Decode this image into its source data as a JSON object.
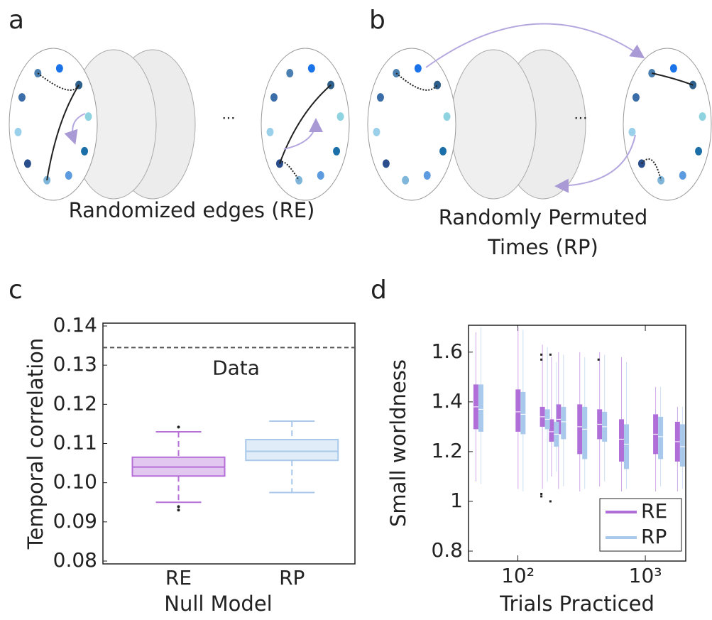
{
  "panels": {
    "a": {
      "label": "a",
      "caption": "Randomized edges (RE)",
      "ellipsis": "..."
    },
    "b": {
      "label": "b",
      "caption_lines": [
        "Randomly Permuted",
        "Times (RP)"
      ],
      "ellipsis": "..."
    }
  },
  "chart_data": [
    {
      "type": "box",
      "panel_label": "c",
      "ylabel": "Temporal correlation",
      "xlabel": "Null Model",
      "categories": [
        "RE",
        "RP"
      ],
      "boxes": [
        {
          "low": 0.095,
          "q1": 0.1017,
          "median": 0.104,
          "q3": 0.1065,
          "high": 0.113,
          "outliers": [
            0.1142,
            0.0939,
            0.093
          ],
          "color": "#b56fd6",
          "fill": "#e2c8f0"
        },
        {
          "low": 0.0975,
          "q1": 0.1057,
          "median": 0.108,
          "q3": 0.111,
          "high": 0.1157,
          "outliers": [],
          "color": "#a9c8ea",
          "fill": "#e0ecf8"
        }
      ],
      "ylim": [
        0.08,
        0.14
      ],
      "yticks": [
        0.08,
        0.09,
        {
          "value": 0.1,
          "label": "0.10"
        },
        0.11,
        0.12,
        0.13,
        0.14
      ],
      "reference_line": {
        "value": 0.1345,
        "label": "Data",
        "color": "#555555"
      }
    },
    {
      "type": "box",
      "panel_label": "d",
      "ylabel": "Small worldness",
      "xlabel": "Trials Practiced",
      "x": [
        49,
        105,
        163,
        192,
        218,
        320,
        458,
        680,
        1260,
        1870
      ],
      "xlim": [
        41,
        2075
      ],
      "log_x": true,
      "xticks": [
        {
          "value": 100,
          "label": "10²"
        },
        {
          "value": 1000,
          "label": "10³"
        }
      ],
      "ylim": [
        0.76,
        1.708
      ],
      "yticks": [
        0.8,
        1,
        1.2,
        1.4,
        1.6
      ],
      "legend": "lower right",
      "series": [
        {
          "name": "RE",
          "color": "#b06fd8",
          "low": [
            1.08,
            1.05,
            1.05,
            1.1,
            1.05,
            1.04,
            1.06,
            1.04,
            1.04,
            1.04
          ],
          "q1": [
            1.29,
            1.28,
            1.3,
            1.24,
            1.27,
            1.19,
            1.25,
            1.16,
            1.19,
            1.16
          ],
          "median": [
            1.38,
            1.36,
            1.34,
            1.28,
            1.33,
            1.3,
            1.31,
            1.25,
            1.27,
            1.24
          ],
          "q3": [
            1.47,
            1.45,
            1.38,
            1.33,
            1.39,
            1.39,
            1.37,
            1.33,
            1.35,
            1.32
          ],
          "high": [
            1.68,
            1.7,
            1.63,
            1.58,
            1.6,
            1.6,
            1.6,
            1.58,
            1.46,
            1.38
          ],
          "outliers": [
            [],
            [],
            [
              1.59,
              1.57,
              1.02,
              1.03
            ],
            [
              1.59,
              1.0
            ],
            [],
            [],
            [
              1.57
            ],
            [],
            [],
            []
          ]
        },
        {
          "name": "RP",
          "color": "#a8c9eb",
          "low": [
            1.07,
            1.04,
            1.08,
            1.12,
            1.06,
            1.05,
            1.08,
            1.05,
            1.06,
            1.05
          ],
          "q1": [
            1.28,
            1.27,
            1.29,
            1.22,
            1.25,
            1.17,
            1.24,
            1.13,
            1.17,
            1.14
          ],
          "median": [
            1.37,
            1.35,
            1.33,
            1.27,
            1.32,
            1.29,
            1.3,
            1.23,
            1.26,
            1.22
          ],
          "q3": [
            1.47,
            1.44,
            1.37,
            1.32,
            1.38,
            1.38,
            1.36,
            1.31,
            1.34,
            1.31
          ],
          "high": [
            1.7,
            1.69,
            1.62,
            1.56,
            1.59,
            1.58,
            1.59,
            1.56,
            1.46,
            1.38
          ],
          "outliers": [
            [],
            [],
            [],
            [],
            [],
            [],
            [],
            [],
            [],
            []
          ]
        }
      ]
    }
  ]
}
